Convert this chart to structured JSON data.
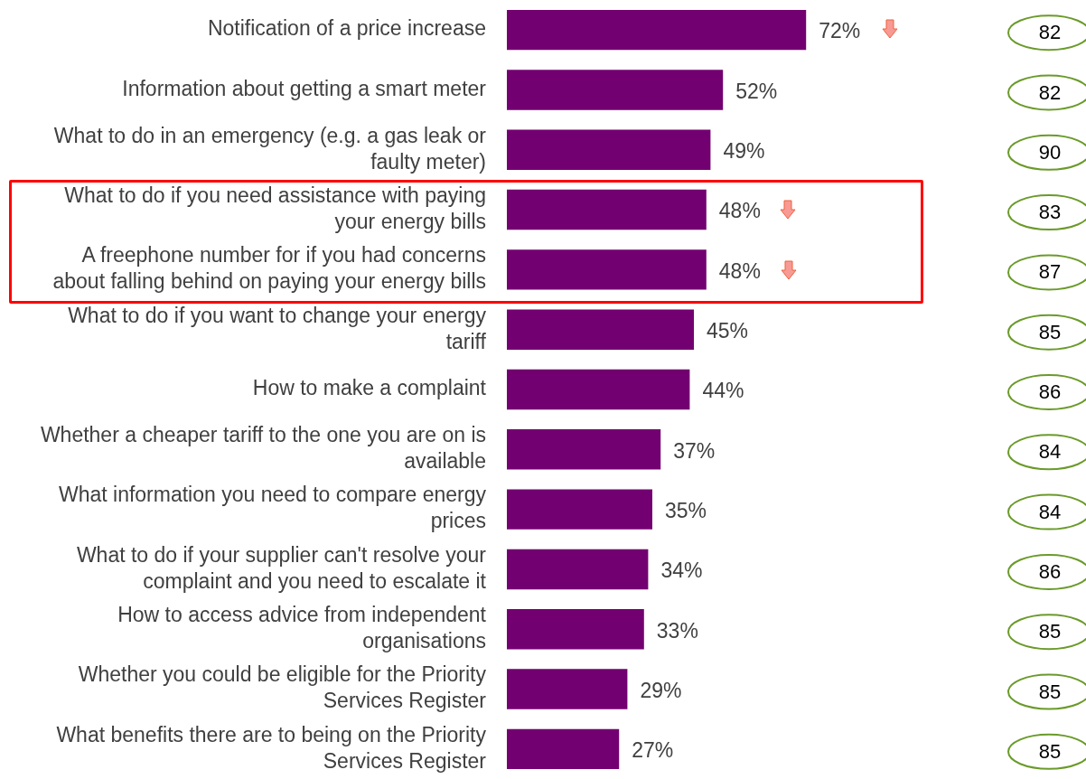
{
  "chart_data": [
    {
      "type": "bar",
      "orientation": "horizontal",
      "categories": [
        "Notification of a price increase",
        "Information about getting a smart meter",
        "What to do in an emergency (e.g. a gas leak or faulty meter)",
        "What to do if you need assistance with paying your energy bills",
        "A freephone number for if you had concerns about falling behind on paying your energy bills",
        "What to do if you want to change your energy tariff",
        "How to make a complaint",
        "Whether a cheaper tariff to the one you are on is available",
        "What information you need to compare energy prices",
        "What to do if your supplier can't resolve your complaint and you need to escalate it",
        "How to access advice from independent organisations",
        "Whether you could be eligible for the Priority Services Register",
        "What benefits there are to being on the Priority Services Register"
      ],
      "values": [
        72,
        52,
        49,
        48,
        48,
        45,
        44,
        37,
        35,
        34,
        33,
        29,
        27
      ],
      "value_labels": [
        "72%",
        "52%",
        "49%",
        "48%",
        "48%",
        "45%",
        "44%",
        "37%",
        "35%",
        "34%",
        "33%",
        "29%",
        "27%"
      ],
      "color": "#730070"
    },
    {
      "type": "other",
      "values": [
        82,
        82,
        90,
        83,
        87,
        85,
        86,
        84,
        84,
        86,
        85,
        85,
        85
      ],
      "data_labels": true,
      "color": "#6a9a2a"
    }
  ]
}
